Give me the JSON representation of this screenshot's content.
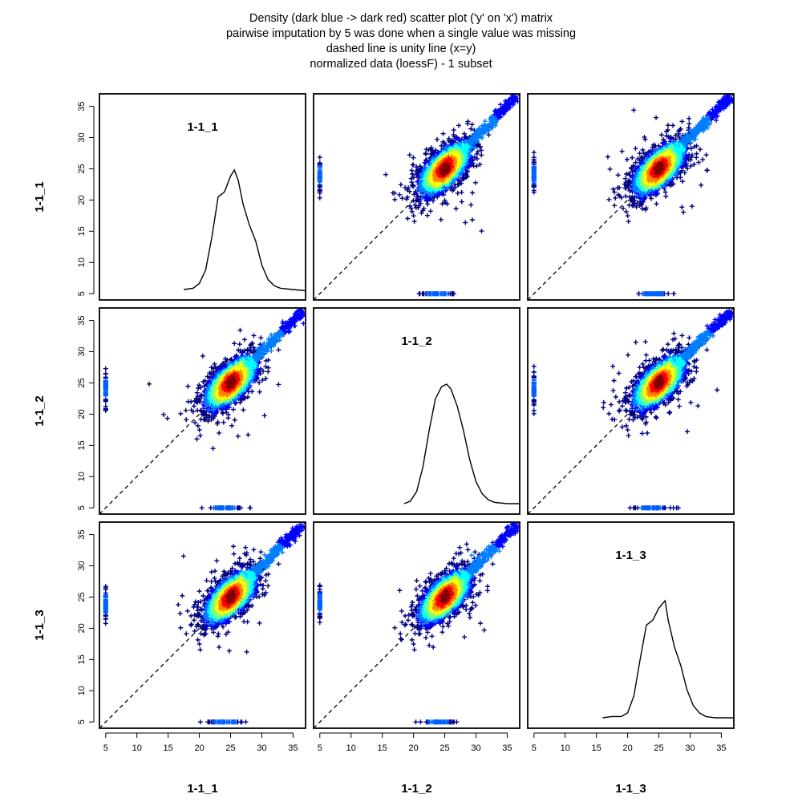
{
  "title_lines": [
    "Density (dark blue -> dark red) scatter plot ('y' on 'x') matrix",
    "pairwise imputation by 5 was done when a single value was missing",
    "dashed line is unity line (x=y)",
    "normalized data (loessF) - 1 subset"
  ],
  "chart_data": {
    "type": "scatter",
    "variables": [
      "1-1_1",
      "1-1_2",
      "1-1_3"
    ],
    "axis_ticks": [
      5,
      10,
      15,
      20,
      25,
      30,
      35
    ],
    "axis_range": [
      4,
      37
    ],
    "unity_line": true,
    "imputed_value": 5,
    "color_scale": [
      "#00007F",
      "#0000FF",
      "#007FFF",
      "#00FFFF",
      "#7FFF7F",
      "#FFFF00",
      "#FF7F00",
      "#FF0000",
      "#7F0000"
    ],
    "density_curves": {
      "1-1_1": [
        [
          17.5,
          0.02
        ],
        [
          19,
          0.03
        ],
        [
          20,
          0.07
        ],
        [
          21,
          0.18
        ],
        [
          22,
          0.45
        ],
        [
          23,
          0.78
        ],
        [
          24,
          0.82
        ],
        [
          25,
          0.95
        ],
        [
          25.6,
          1.0
        ],
        [
          26.2,
          0.92
        ],
        [
          27,
          0.72
        ],
        [
          28,
          0.55
        ],
        [
          29,
          0.42
        ],
        [
          30,
          0.22
        ],
        [
          31,
          0.1
        ],
        [
          32,
          0.05
        ],
        [
          33,
          0.03
        ],
        [
          35,
          0.02
        ],
        [
          37,
          0.01
        ]
      ],
      "1-1_2": [
        [
          18.5,
          0.02
        ],
        [
          19.5,
          0.04
        ],
        [
          20.5,
          0.12
        ],
        [
          21.5,
          0.32
        ],
        [
          22.5,
          0.62
        ],
        [
          23.5,
          0.88
        ],
        [
          24.5,
          0.98
        ],
        [
          25.3,
          1.0
        ],
        [
          26,
          0.96
        ],
        [
          27,
          0.82
        ],
        [
          28,
          0.62
        ],
        [
          29,
          0.38
        ],
        [
          30,
          0.2
        ],
        [
          31,
          0.1
        ],
        [
          32,
          0.05
        ],
        [
          33,
          0.03
        ],
        [
          35,
          0.02
        ],
        [
          37,
          0.02
        ]
      ],
      "1-1_3": [
        [
          16,
          0.02
        ],
        [
          17.5,
          0.03
        ],
        [
          19,
          0.03
        ],
        [
          20,
          0.06
        ],
        [
          21,
          0.2
        ],
        [
          22,
          0.5
        ],
        [
          23,
          0.78
        ],
        [
          24,
          0.82
        ],
        [
          25,
          0.92
        ],
        [
          26,
          0.98
        ],
        [
          26.5,
          0.82
        ],
        [
          27.5,
          0.6
        ],
        [
          28.5,
          0.45
        ],
        [
          29.5,
          0.25
        ],
        [
          30.5,
          0.12
        ],
        [
          31.5,
          0.06
        ],
        [
          32.5,
          0.03
        ],
        [
          34,
          0.02
        ],
        [
          37,
          0.02
        ]
      ]
    }
  }
}
